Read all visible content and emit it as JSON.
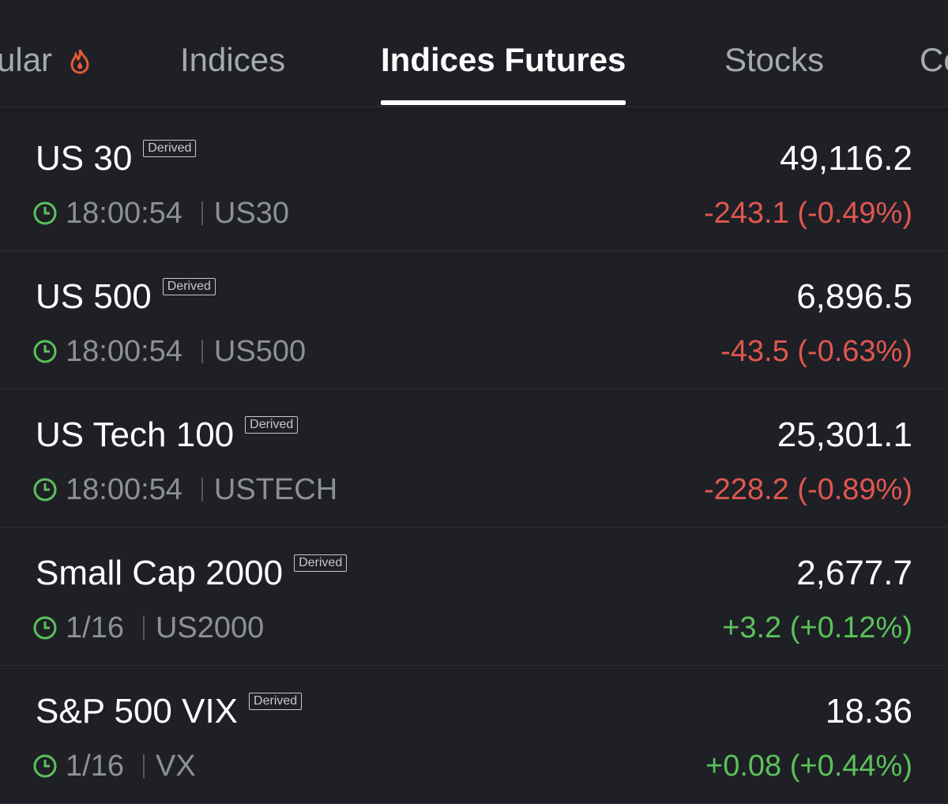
{
  "tabs": {
    "items": [
      "ular",
      "Indices",
      "Indices Futures",
      "Stocks",
      "Co"
    ],
    "active": 2
  },
  "list": {
    "badge": "Derived",
    "rows": [
      {
        "name": "US 30",
        "time": "18:00:54",
        "symbol": "US30",
        "price": "49,116.2",
        "change": "-243.1 (-0.49%)",
        "color": "#e0574f"
      },
      {
        "name": "US 500",
        "time": "18:00:54",
        "symbol": "US500",
        "price": "6,896.5",
        "change": "-43.5 (-0.63%)",
        "color": "#e0574f"
      },
      {
        "name": "US Tech 100",
        "time": "18:00:54",
        "symbol": "USTECH",
        "price": "25,301.1",
        "change": "-228.2 (-0.89%)",
        "color": "#e0574f"
      },
      {
        "name": "Small Cap 2000",
        "time": "1/16",
        "symbol": "US2000",
        "price": "2,677.7",
        "change": "+3.2 (+0.12%)",
        "color": "#5cc15a"
      },
      {
        "name": "S&P 500 VIX",
        "time": "1/16",
        "symbol": "VX",
        "price": "18.36",
        "change": "+0.08 (+0.44%)",
        "color": "#5cc15a"
      }
    ]
  }
}
